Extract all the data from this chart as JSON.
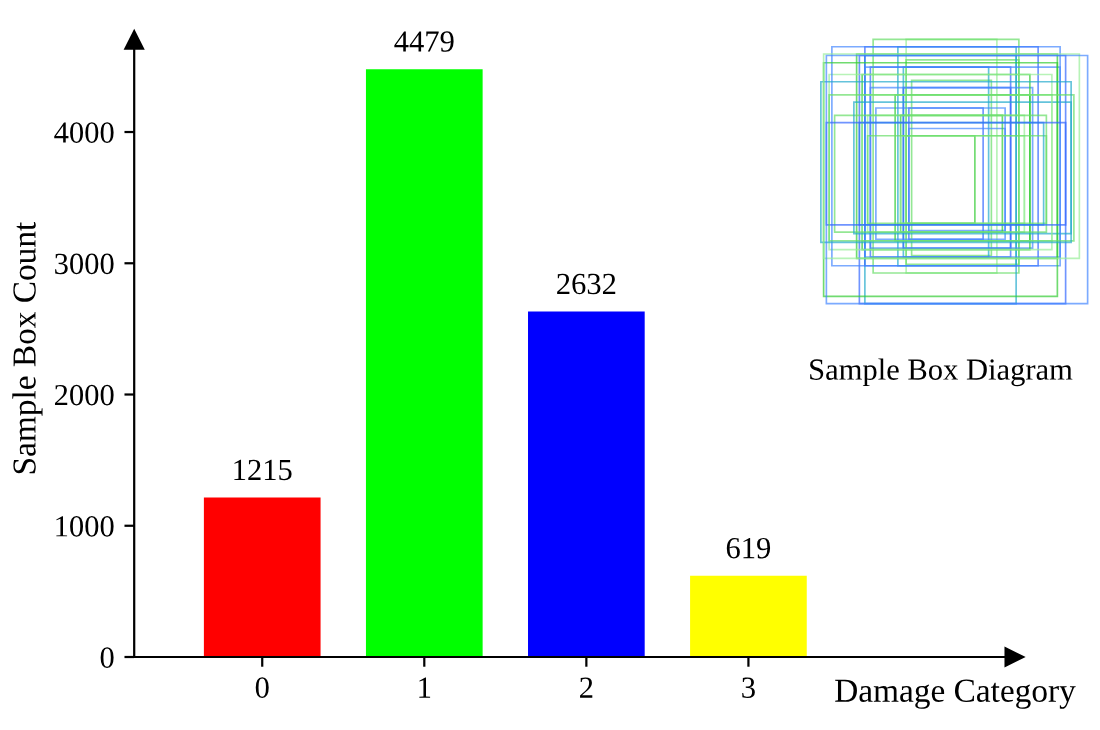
{
  "chart_data": {
    "type": "bar",
    "categories": [
      "0",
      "1",
      "2",
      "3"
    ],
    "values": [
      1215,
      4479,
      2632,
      619
    ],
    "colors": [
      "#ff0000",
      "#00ff00",
      "#0000ff",
      "#ffff00"
    ],
    "xlabel": "Damage Category",
    "ylabel": "Sample Box Count",
    "ylim": [
      0,
      4700
    ],
    "yticks": [
      0,
      1000,
      2000,
      3000,
      4000
    ],
    "data_labels": true,
    "grid": false,
    "annotations": [
      "Sample Box Diagram"
    ]
  }
}
